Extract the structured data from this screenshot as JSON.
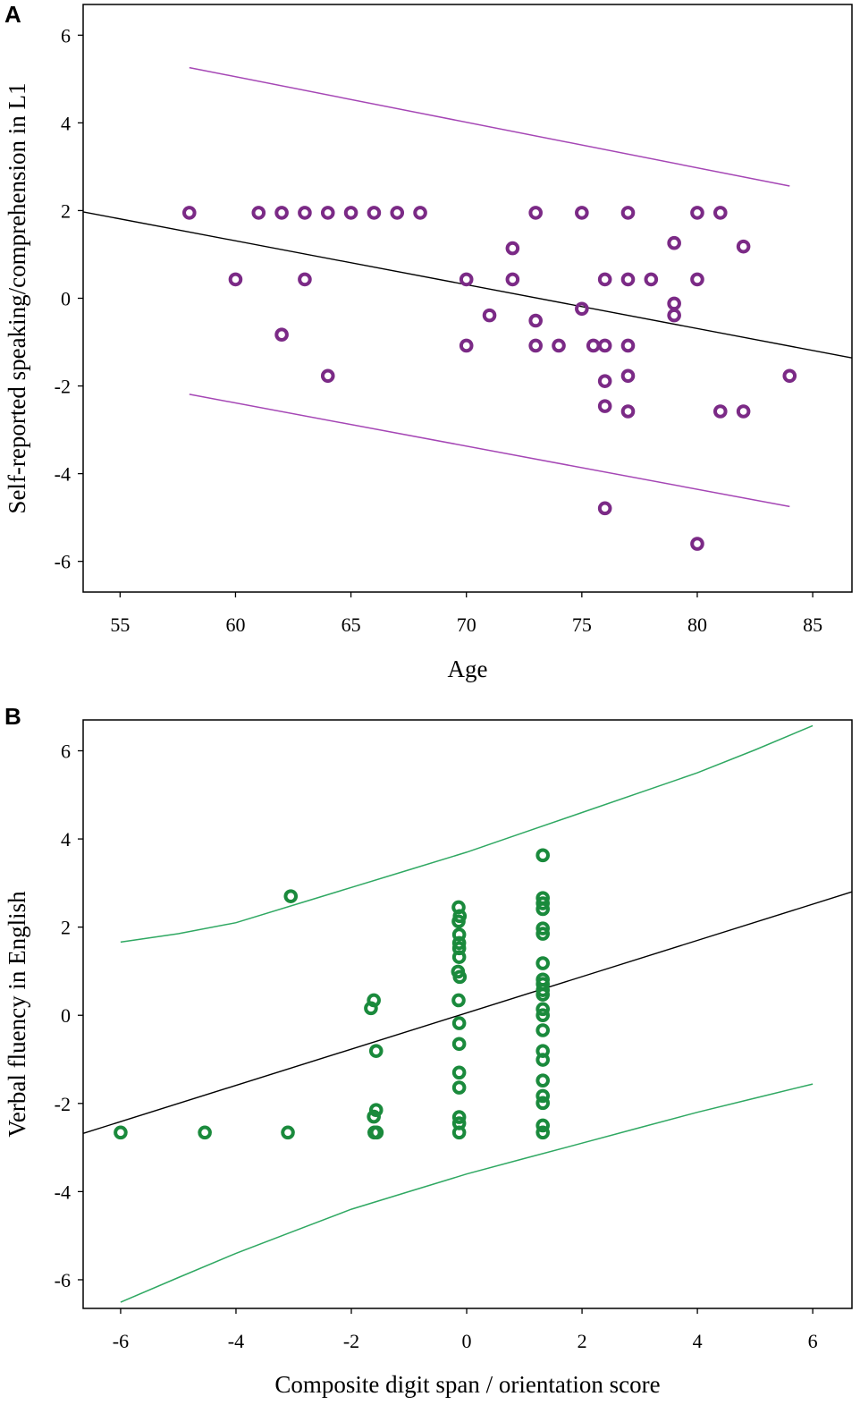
{
  "chart_data": [
    {
      "type": "scatter",
      "panel_label": "A",
      "xlabel": "Age",
      "ylabel": "Self-reported speaking/comprehension in L1",
      "xlim": [
        53.4,
        86.7
      ],
      "ylim": [
        -6.7,
        6.7
      ],
      "xticks": [
        55,
        60,
        65,
        70,
        75,
        80,
        85
      ],
      "yticks": [
        -6,
        -4,
        -2,
        0,
        2,
        4,
        6
      ],
      "grid": false,
      "point_color": "#7b2a86",
      "band_color": "#a546b5",
      "line_color": "#000000",
      "points": [
        [
          58,
          1.95
        ],
        [
          61,
          1.95
        ],
        [
          62,
          1.95
        ],
        [
          63,
          1.95
        ],
        [
          64,
          1.95
        ],
        [
          65,
          1.95
        ],
        [
          66,
          1.95
        ],
        [
          67,
          1.95
        ],
        [
          68,
          1.95
        ],
        [
          73,
          1.95
        ],
        [
          75,
          1.95
        ],
        [
          77,
          1.95
        ],
        [
          80,
          1.95
        ],
        [
          81,
          1.95
        ],
        [
          72,
          1.14
        ],
        [
          79,
          1.26
        ],
        [
          82,
          1.18
        ],
        [
          60,
          0.43
        ],
        [
          63,
          0.43
        ],
        [
          70,
          0.43
        ],
        [
          72,
          0.43
        ],
        [
          76,
          0.43
        ],
        [
          77,
          0.43
        ],
        [
          78,
          0.43
        ],
        [
          80,
          0.43
        ],
        [
          79,
          -0.12
        ],
        [
          79,
          -0.39
        ],
        [
          71,
          -0.39
        ],
        [
          75,
          -0.24
        ],
        [
          73,
          -0.51
        ],
        [
          62,
          -0.83
        ],
        [
          70,
          -1.08
        ],
        [
          73,
          -1.08
        ],
        [
          74,
          -1.08
        ],
        [
          75.5,
          -1.08
        ],
        [
          76,
          -1.08
        ],
        [
          77,
          -1.08
        ],
        [
          64,
          -1.77
        ],
        [
          77,
          -1.77
        ],
        [
          84,
          -1.77
        ],
        [
          76,
          -1.89
        ],
        [
          76,
          -2.46
        ],
        [
          77,
          -2.58
        ],
        [
          81,
          -2.58
        ],
        [
          82,
          -2.58
        ],
        [
          76,
          -4.79
        ],
        [
          80,
          -5.6
        ]
      ],
      "fit_line": [
        [
          53.4,
          1.97
        ],
        [
          86.7,
          -1.36
        ]
      ],
      "upper_band": [
        [
          58,
          5.26
        ],
        [
          84,
          2.56
        ]
      ],
      "lower_band": [
        [
          58,
          -2.19
        ],
        [
          84,
          -4.75
        ]
      ]
    },
    {
      "type": "scatter",
      "panel_label": "B",
      "xlabel": "Composite digit span / orientation score",
      "ylabel": "Verbal fluency in English",
      "xlim": [
        -6.65,
        6.68
      ],
      "ylim": [
        -6.65,
        6.7
      ],
      "xticks": [
        -6,
        -4,
        -2,
        0,
        2,
        4,
        6
      ],
      "yticks": [
        -6,
        -4,
        -2,
        0,
        2,
        4,
        6
      ],
      "grid": false,
      "point_color": "#1a8a3c",
      "band_color": "#2fa862",
      "line_color": "#000000",
      "points": [
        [
          -6,
          -2.66
        ],
        [
          -4.54,
          -2.66
        ],
        [
          -3.1,
          -2.66
        ],
        [
          -3.05,
          2.7
        ],
        [
          -1.61,
          0.34
        ],
        [
          -1.66,
          0.16
        ],
        [
          -1.57,
          -0.81
        ],
        [
          -1.57,
          -2.15
        ],
        [
          -1.61,
          -2.3
        ],
        [
          -1.6,
          -2.66
        ],
        [
          -1.56,
          -2.66
        ],
        [
          -0.14,
          2.45
        ],
        [
          -0.12,
          2.25
        ],
        [
          -0.14,
          2.13
        ],
        [
          -0.13,
          1.83
        ],
        [
          -0.13,
          1.64
        ],
        [
          -0.13,
          1.52
        ],
        [
          -0.13,
          1.32
        ],
        [
          -0.15,
          0.99
        ],
        [
          -0.12,
          0.87
        ],
        [
          -0.14,
          0.34
        ],
        [
          -0.13,
          -0.18
        ],
        [
          -0.13,
          -0.65
        ],
        [
          -0.13,
          -1.3
        ],
        [
          -0.13,
          -1.64
        ],
        [
          -0.13,
          -2.31
        ],
        [
          -0.13,
          -2.45
        ],
        [
          -0.13,
          -2.66
        ],
        [
          1.32,
          3.63
        ],
        [
          1.32,
          2.66
        ],
        [
          1.32,
          2.54
        ],
        [
          1.32,
          2.41
        ],
        [
          1.32,
          1.97
        ],
        [
          1.32,
          1.85
        ],
        [
          1.32,
          1.18
        ],
        [
          1.32,
          0.81
        ],
        [
          1.32,
          0.71
        ],
        [
          1.32,
          0.57
        ],
        [
          1.32,
          0.47
        ],
        [
          1.32,
          0.14
        ],
        [
          1.32,
          0
        ],
        [
          1.32,
          -0.34
        ],
        [
          1.32,
          -0.81
        ],
        [
          1.32,
          -1.01
        ],
        [
          1.32,
          -1.48
        ],
        [
          1.32,
          -1.83
        ],
        [
          1.32,
          -1.99
        ],
        [
          1.32,
          -2.5
        ],
        [
          1.32,
          -2.66
        ]
      ],
      "fit_line": [
        [
          -6.65,
          -2.68
        ],
        [
          6.68,
          2.8
        ]
      ],
      "upper_band": [
        [
          -6,
          1.66
        ],
        [
          -5,
          1.85
        ],
        [
          -4,
          2.1
        ],
        [
          -3,
          2.5
        ],
        [
          -2,
          2.9
        ],
        [
          -1,
          3.3
        ],
        [
          0,
          3.7
        ],
        [
          1,
          4.15
        ],
        [
          2,
          4.6
        ],
        [
          3,
          5.05
        ],
        [
          4,
          5.5
        ],
        [
          5,
          6.02
        ],
        [
          6,
          6.57
        ]
      ],
      "lower_band": [
        [
          -6,
          -6.51
        ],
        [
          -5,
          -5.95
        ],
        [
          -4,
          -5.4
        ],
        [
          -3,
          -4.9
        ],
        [
          -2,
          -4.4
        ],
        [
          -1,
          -4.0
        ],
        [
          0,
          -3.6
        ],
        [
          1,
          -3.25
        ],
        [
          2,
          -2.9
        ],
        [
          3,
          -2.55
        ],
        [
          4,
          -2.2
        ],
        [
          5,
          -1.88
        ],
        [
          6,
          -1.56
        ]
      ]
    }
  ]
}
